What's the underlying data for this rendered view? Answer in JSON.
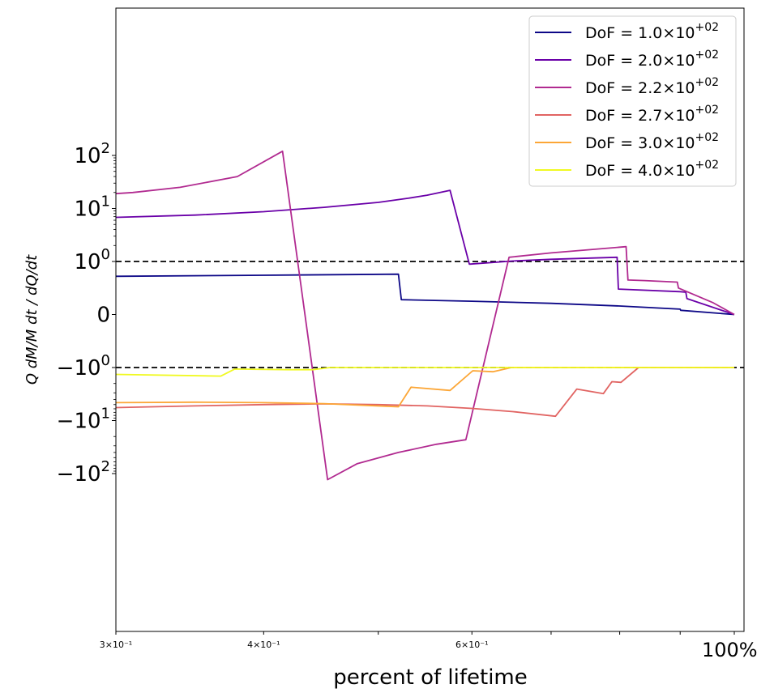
{
  "chart_data": {
    "type": "line",
    "title": "",
    "xlabel": "percent of lifetime",
    "ylabel": "Q dM/M dt / dQ/dt",
    "xscale": "log",
    "yscale": "symlog",
    "xlim": [
      0.3,
      1.0
    ],
    "x_ticks": [
      {
        "value": 0.3,
        "label": "3×10⁻¹"
      },
      {
        "value": 0.4,
        "label": "4×10⁻¹"
      },
      {
        "value": 0.6,
        "label": "6×10⁻¹"
      },
      {
        "value": 1.0,
        "label": "100%"
      }
    ],
    "y_ticks": [
      {
        "value": 100,
        "base": "10",
        "exp": "2"
      },
      {
        "value": 10,
        "base": "10",
        "exp": "1"
      },
      {
        "value": 1,
        "base": "10",
        "exp": "0"
      },
      {
        "value": 0,
        "base": "0",
        "exp": ""
      },
      {
        "value": -1,
        "base": "−10",
        "exp": "0"
      },
      {
        "value": -10,
        "base": "−10",
        "exp": "1"
      },
      {
        "value": -100,
        "base": "−10",
        "exp": "2"
      }
    ],
    "reference_lines": [
      1,
      -1
    ],
    "legend_position": "top-right",
    "series": [
      {
        "name": "DoF = 1.0×10",
        "exp": "+02",
        "color": "#0d0887",
        "points": [
          [
            0.3,
            0.72
          ],
          [
            0.4,
            0.74
          ],
          [
            0.52,
            0.76
          ],
          [
            0.523,
            0.28
          ],
          [
            0.6,
            0.25
          ],
          [
            0.7,
            0.21
          ],
          [
            0.8,
            0.16
          ],
          [
            0.9,
            0.1
          ],
          [
            0.901,
            0.08
          ],
          [
            1.0,
            0.0
          ]
        ]
      },
      {
        "name": "DoF = 2.0×10",
        "exp": "+02",
        "color": "#6a00a8",
        "points": [
          [
            0.3,
            6.8
          ],
          [
            0.35,
            7.5
          ],
          [
            0.4,
            8.7
          ],
          [
            0.45,
            10.5
          ],
          [
            0.5,
            13.0
          ],
          [
            0.53,
            15.6
          ],
          [
            0.55,
            17.8
          ],
          [
            0.575,
            22.0
          ],
          [
            0.597,
            0.95
          ],
          [
            0.65,
            1.02
          ],
          [
            0.7,
            1.1
          ],
          [
            0.796,
            1.2
          ],
          [
            0.798,
            0.48
          ],
          [
            0.9,
            0.43
          ],
          [
            0.91,
            0.42
          ],
          [
            0.912,
            0.3
          ],
          [
            1.0,
            0.0
          ]
        ]
      },
      {
        "name": "DoF = 2.2×10",
        "exp": "+02",
        "color": "#b12a90",
        "points": [
          [
            0.3,
            19.0
          ],
          [
            0.31,
            20.0
          ],
          [
            0.34,
            25.0
          ],
          [
            0.38,
            40.0
          ],
          [
            0.415,
            120.0
          ],
          [
            0.453,
            -130.0
          ],
          [
            0.48,
            -65.0
          ],
          [
            0.52,
            -40.0
          ],
          [
            0.56,
            -28.0
          ],
          [
            0.593,
            -23.0
          ],
          [
            0.645,
            1.2
          ],
          [
            0.7,
            1.45
          ],
          [
            0.81,
            1.9
          ],
          [
            0.813,
            0.65
          ],
          [
            0.84,
            0.64
          ],
          [
            0.895,
            0.61
          ],
          [
            0.897,
            0.5
          ],
          [
            0.96,
            0.22
          ],
          [
            1.0,
            0.0
          ]
        ]
      },
      {
        "name": "DoF = 2.7×10",
        "exp": "+02",
        "color": "#e16462",
        "points": [
          [
            0.3,
            -5.7
          ],
          [
            0.35,
            -5.3
          ],
          [
            0.4,
            -5.0
          ],
          [
            0.45,
            -4.85
          ],
          [
            0.5,
            -5.0
          ],
          [
            0.55,
            -5.3
          ],
          [
            0.6,
            -5.9
          ],
          [
            0.65,
            -6.8
          ],
          [
            0.706,
            -8.3
          ],
          [
            0.736,
            -2.55
          ],
          [
            0.775,
            -3.1
          ],
          [
            0.788,
            -1.85
          ],
          [
            0.802,
            -1.9
          ],
          [
            0.83,
            -1.0
          ],
          [
            0.9,
            -1.0
          ],
          [
            1.0,
            -1.0
          ]
        ]
      },
      {
        "name": "DoF = 3.0×10",
        "exp": "+02",
        "color": "#fca636",
        "points": [
          [
            0.3,
            -4.6
          ],
          [
            0.35,
            -4.5
          ],
          [
            0.4,
            -4.6
          ],
          [
            0.45,
            -4.8
          ],
          [
            0.52,
            -5.5
          ],
          [
            0.533,
            -2.35
          ],
          [
            0.575,
            -2.7
          ],
          [
            0.601,
            -1.15
          ],
          [
            0.625,
            -1.2
          ],
          [
            0.648,
            -1.0
          ],
          [
            0.7,
            -1.0
          ],
          [
            1.0,
            -1.0
          ]
        ]
      },
      {
        "name": "DoF = 4.0×10",
        "exp": "+02",
        "color": "#f0f921",
        "points": [
          [
            0.3,
            -1.35
          ],
          [
            0.368,
            -1.45
          ],
          [
            0.378,
            -1.07
          ],
          [
            0.42,
            -1.1
          ],
          [
            0.44,
            -1.1
          ],
          [
            0.455,
            -1.0
          ],
          [
            0.6,
            -1.0
          ],
          [
            1.0,
            -1.0
          ]
        ]
      }
    ]
  }
}
